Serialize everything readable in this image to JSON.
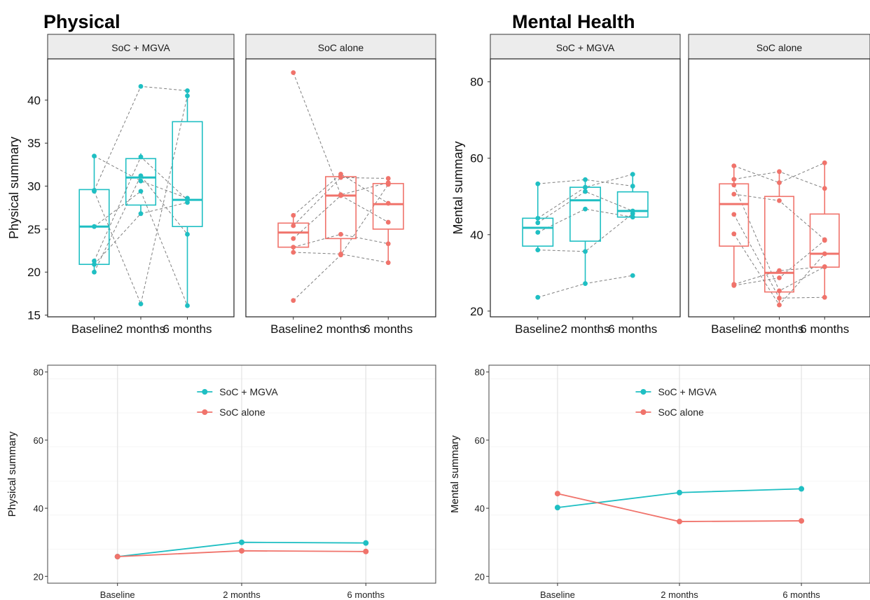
{
  "colors": {
    "teal": "#1fbfc3",
    "salmon": "#f0736b"
  },
  "sections": {
    "physical_title": "Physical",
    "mental_title": "Mental Health"
  },
  "chart_data": [
    {
      "id": "physical-box",
      "type": "box",
      "ylabel": "Physical summary",
      "ylim": [
        14.8,
        44.8
      ],
      "yticks": [
        15,
        20,
        25,
        30,
        35,
        40
      ],
      "categories": [
        "Baseline",
        "2 months",
        "6 months"
      ],
      "panels": [
        {
          "name": "SoC + MGVA",
          "color": "#1fbfc3",
          "boxes": [
            {
              "q1": 20.9,
              "median": 25.3,
              "q3": 29.6,
              "min": 20.0,
              "max": 33.5
            },
            {
              "q1": 27.8,
              "median": 31.0,
              "q3": 33.2,
              "min": 26.8,
              "max": 33.8
            },
            {
              "q1": 25.3,
              "median": 28.4,
              "q3": 37.5,
              "min": 16.1,
              "max": 41.2
            }
          ],
          "subjects": [
            [
              33.5,
              30.6,
              28.6
            ],
            [
              29.5,
              41.6,
              41.1
            ],
            [
              29.4,
              16.3,
              40.5
            ],
            [
              21.3,
              33.4,
              28.4
            ],
            [
              20.9,
              26.8,
              28.1
            ],
            [
              20.0,
              31.2,
              24.4
            ],
            [
              25.3,
              29.4,
              16.1
            ]
          ]
        },
        {
          "name": "SoC alone",
          "color": "#f0736b",
          "boxes": [
            {
              "q1": 22.9,
              "median": 24.6,
              "q3": 25.7,
              "min": 22.3,
              "max": 26.6
            },
            {
              "q1": 23.9,
              "median": 28.9,
              "q3": 31.1,
              "min": 22.0,
              "max": 31.4
            },
            {
              "q1": 25.0,
              "median": 27.9,
              "q3": 30.3,
              "min": 21.1,
              "max": 31.0
            }
          ],
          "subjects": [
            [
              43.2,
              29.0,
              30.4
            ],
            [
              26.6,
              31.4,
              28.0
            ],
            [
              25.4,
              31.0,
              30.9
            ],
            [
              23.9,
              28.9,
              25.8
            ],
            [
              22.9,
              24.4,
              23.3
            ],
            [
              22.3,
              22.1,
              21.1
            ],
            [
              16.7,
              22.0,
              30.2
            ]
          ],
          "outlier": 43.2
        }
      ]
    },
    {
      "id": "mental-box",
      "type": "box",
      "ylabel": "Mental summary",
      "ylim": [
        18.5,
        86.0
      ],
      "yticks": [
        20,
        40,
        60,
        80
      ],
      "categories": [
        "Baseline",
        "2 months",
        "6 months"
      ],
      "panels": [
        {
          "name": "SoC + MGVA",
          "color": "#1fbfc3",
          "boxes": [
            {
              "q1": 37.0,
              "median": 41.8,
              "q3": 44.3,
              "min": 36.0,
              "max": 53.3
            },
            {
              "q1": 38.3,
              "median": 49.0,
              "q3": 52.4,
              "min": 27.2,
              "max": 54.4
            },
            {
              "q1": 44.6,
              "median": 46.2,
              "q3": 51.2,
              "min": 44.2,
              "max": 55.8
            }
          ],
          "subjects": [
            [
              53.3,
              54.4,
              52.7
            ],
            [
              44.3,
              52.4,
              55.8
            ],
            [
              43.1,
              51.3,
              46.2
            ],
            [
              40.6,
              46.7,
              44.6
            ],
            [
              36.0,
              35.6,
              45.5
            ],
            [
              23.6,
              27.2,
              29.3
            ]
          ],
          "outlier": 23.6
        },
        {
          "name": "SoC alone",
          "color": "#f0736b",
          "boxes": [
            {
              "q1": 37.0,
              "median": 48.0,
              "q3": 53.3,
              "min": 26.7,
              "max": 58.0
            },
            {
              "q1": 25.0,
              "median": 30.0,
              "q3": 50.0,
              "min": 21.6,
              "max": 56.5
            },
            {
              "q1": 31.5,
              "median": 35.0,
              "q3": 45.4,
              "min": 23.6,
              "max": 58.8
            }
          ],
          "subjects": [
            [
              58.0,
              53.6,
              58.8
            ],
            [
              54.5,
              56.5,
              52.1
            ],
            [
              53.0,
              25.3,
              31.6
            ],
            [
              50.6,
              48.9,
              38.7
            ],
            [
              45.3,
              23.4,
              23.6
            ],
            [
              40.2,
              21.6,
              35.0
            ],
            [
              27.0,
              30.6,
              31.6
            ],
            [
              26.7,
              28.7,
              38.5
            ]
          ]
        }
      ]
    },
    {
      "id": "physical-line",
      "type": "line",
      "ylabel": "Physical summary",
      "ylim": [
        18,
        82
      ],
      "yticks": [
        20,
        40,
        60,
        80
      ],
      "categories": [
        "Baseline",
        "2 months",
        "6 months"
      ],
      "series": [
        {
          "name": "SoC + MGVA",
          "color": "#1fbfc3",
          "values": [
            25.8,
            30.0,
            29.8
          ]
        },
        {
          "name": "SoC alone",
          "color": "#f0736b",
          "values": [
            25.8,
            27.5,
            27.3
          ]
        }
      ],
      "legend": "top-center"
    },
    {
      "id": "mental-line",
      "type": "line",
      "ylabel": "Mental summary",
      "ylim": [
        18,
        82
      ],
      "yticks": [
        20,
        40,
        60,
        80
      ],
      "categories": [
        "Baseline",
        "2 months",
        "6 months"
      ],
      "series": [
        {
          "name": "SoC + MGVA",
          "color": "#1fbfc3",
          "values": [
            40.2,
            44.6,
            45.7
          ]
        },
        {
          "name": "SoC alone",
          "color": "#f0736b",
          "values": [
            44.3,
            36.1,
            36.3
          ]
        }
      ],
      "legend": "top-center"
    }
  ]
}
